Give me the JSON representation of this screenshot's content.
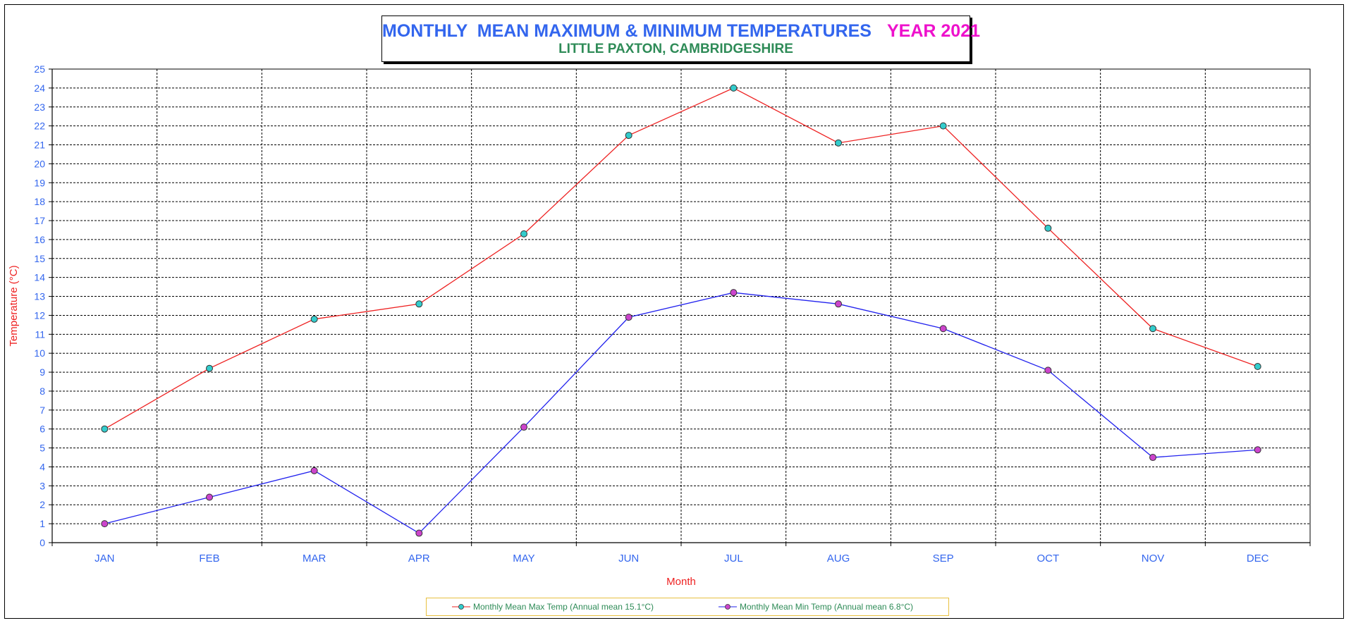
{
  "colors": {
    "title": "#3366ee",
    "year": "#ee11cc",
    "subtitle": "#2e8b57",
    "axis_text": "#3366ee",
    "ylabel": "#ee2222",
    "xlabel": "#ee2222",
    "max_line": "#ee2222",
    "max_marker": "#33cccc",
    "min_line": "#2222ee",
    "min_marker": "#cc44cc",
    "legend_text": "#2e8b57",
    "legend_border": "#e8c040"
  },
  "chart_data": {
    "type": "line",
    "title": "MONTHLY  MEAN MAXIMUM & MINIMUM TEMPERATURES",
    "title_year": "YEAR 2021",
    "subtitle": "LITTLE PAXTON, CAMBRIDGESHIRE",
    "xlabel": "Month",
    "ylabel": "Temperature (°C)",
    "ylim": [
      0,
      25
    ],
    "ytick_step": 1,
    "grid": true,
    "legend_position": "bottom-center",
    "categories": [
      "JAN",
      "FEB",
      "MAR",
      "APR",
      "MAY",
      "JUN",
      "JUL",
      "AUG",
      "SEP",
      "OCT",
      "NOV",
      "DEC"
    ],
    "series": [
      {
        "name": "Monthly Mean Max Temp (Annual mean 15.1°C)",
        "values": [
          6.0,
          9.2,
          11.8,
          12.6,
          16.3,
          21.5,
          24.0,
          21.1,
          22.0,
          16.6,
          11.3,
          9.3
        ],
        "line_color": "#ee2222",
        "marker_color": "#33cccc"
      },
      {
        "name": "Monthly Mean Min Temp (Annual mean 6.8°C)",
        "values": [
          1.0,
          2.4,
          3.8,
          0.5,
          6.1,
          11.9,
          13.2,
          12.6,
          11.3,
          9.1,
          4.5,
          4.9
        ],
        "line_color": "#2222ee",
        "marker_color": "#cc44cc"
      }
    ]
  }
}
